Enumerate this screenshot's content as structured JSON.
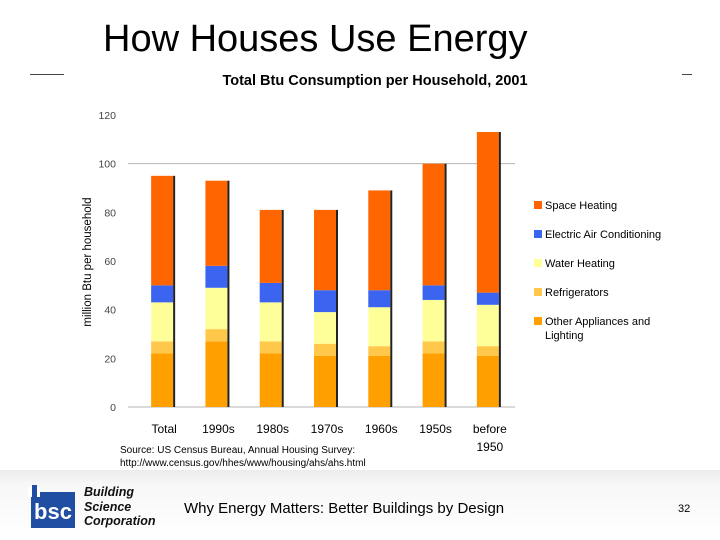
{
  "slide": {
    "title": "How Houses Use Energy",
    "footer": "Why Energy Matters: Better Buildings by Design",
    "page_number": "32",
    "source_line1": "Source: US Census Bureau, Annual Housing Survey:",
    "source_line2": "http://www.census.gov/hhes/www/housing/ahs/ahs.html"
  },
  "logo": {
    "mark": "bsc",
    "line1": "Building",
    "line2": "Science",
    "line3": "Corporation",
    "colors": {
      "blue": "#1f4ea3",
      "dark": "#111111"
    }
  },
  "chart_data": {
    "type": "bar",
    "stacked": true,
    "title": "Total Btu Consumption per Household, 2001",
    "ylabel": "million Btu per household",
    "xlabel": "",
    "ylim": [
      0,
      120
    ],
    "yticks": [
      0,
      20,
      40,
      60,
      80,
      100,
      120
    ],
    "grid_at": [
      100
    ],
    "legend_position": "right",
    "categories": [
      {
        "line1": "Total",
        "line2": ""
      },
      {
        "line1": "1990s",
        "line2": ""
      },
      {
        "line1": "1980s",
        "line2": ""
      },
      {
        "line1": "1970s",
        "line2": ""
      },
      {
        "line1": "1960s",
        "line2": ""
      },
      {
        "line1": "1950s",
        "line2": ""
      },
      {
        "line1": "before",
        "line2": "1950"
      }
    ],
    "series": [
      {
        "name": "Other Appliances and Lighting",
        "color": "#ffa000",
        "values": [
          22,
          27,
          22,
          21,
          21,
          22,
          21
        ]
      },
      {
        "name": "Refrigerators",
        "color": "#ffc84a",
        "values": [
          5,
          5,
          5,
          5,
          4,
          5,
          4
        ]
      },
      {
        "name": "Water Heating",
        "color": "#ffff99",
        "values": [
          16,
          17,
          16,
          13,
          16,
          17,
          17
        ]
      },
      {
        "name": "Electric Air Conditioning",
        "color": "#3b64f0",
        "values": [
          7,
          9,
          8,
          9,
          7,
          6,
          5
        ]
      },
      {
        "name": "Space Heating",
        "color": "#ff6600",
        "values": [
          45,
          35,
          30,
          33,
          41,
          50,
          66
        ]
      }
    ],
    "legend": [
      {
        "line1": "Space Heating",
        "line2": "",
        "color": "#ff6600"
      },
      {
        "line1": "Electric Air Conditioning",
        "line2": "",
        "color": "#3b64f0"
      },
      {
        "line1": "Water Heating",
        "line2": "",
        "color": "#ffff99"
      },
      {
        "line1": "Refrigerators",
        "line2": "",
        "color": "#ffc84a"
      },
      {
        "line1": "Other Appliances and",
        "line2": "Lighting",
        "color": "#ffa000"
      }
    ]
  }
}
